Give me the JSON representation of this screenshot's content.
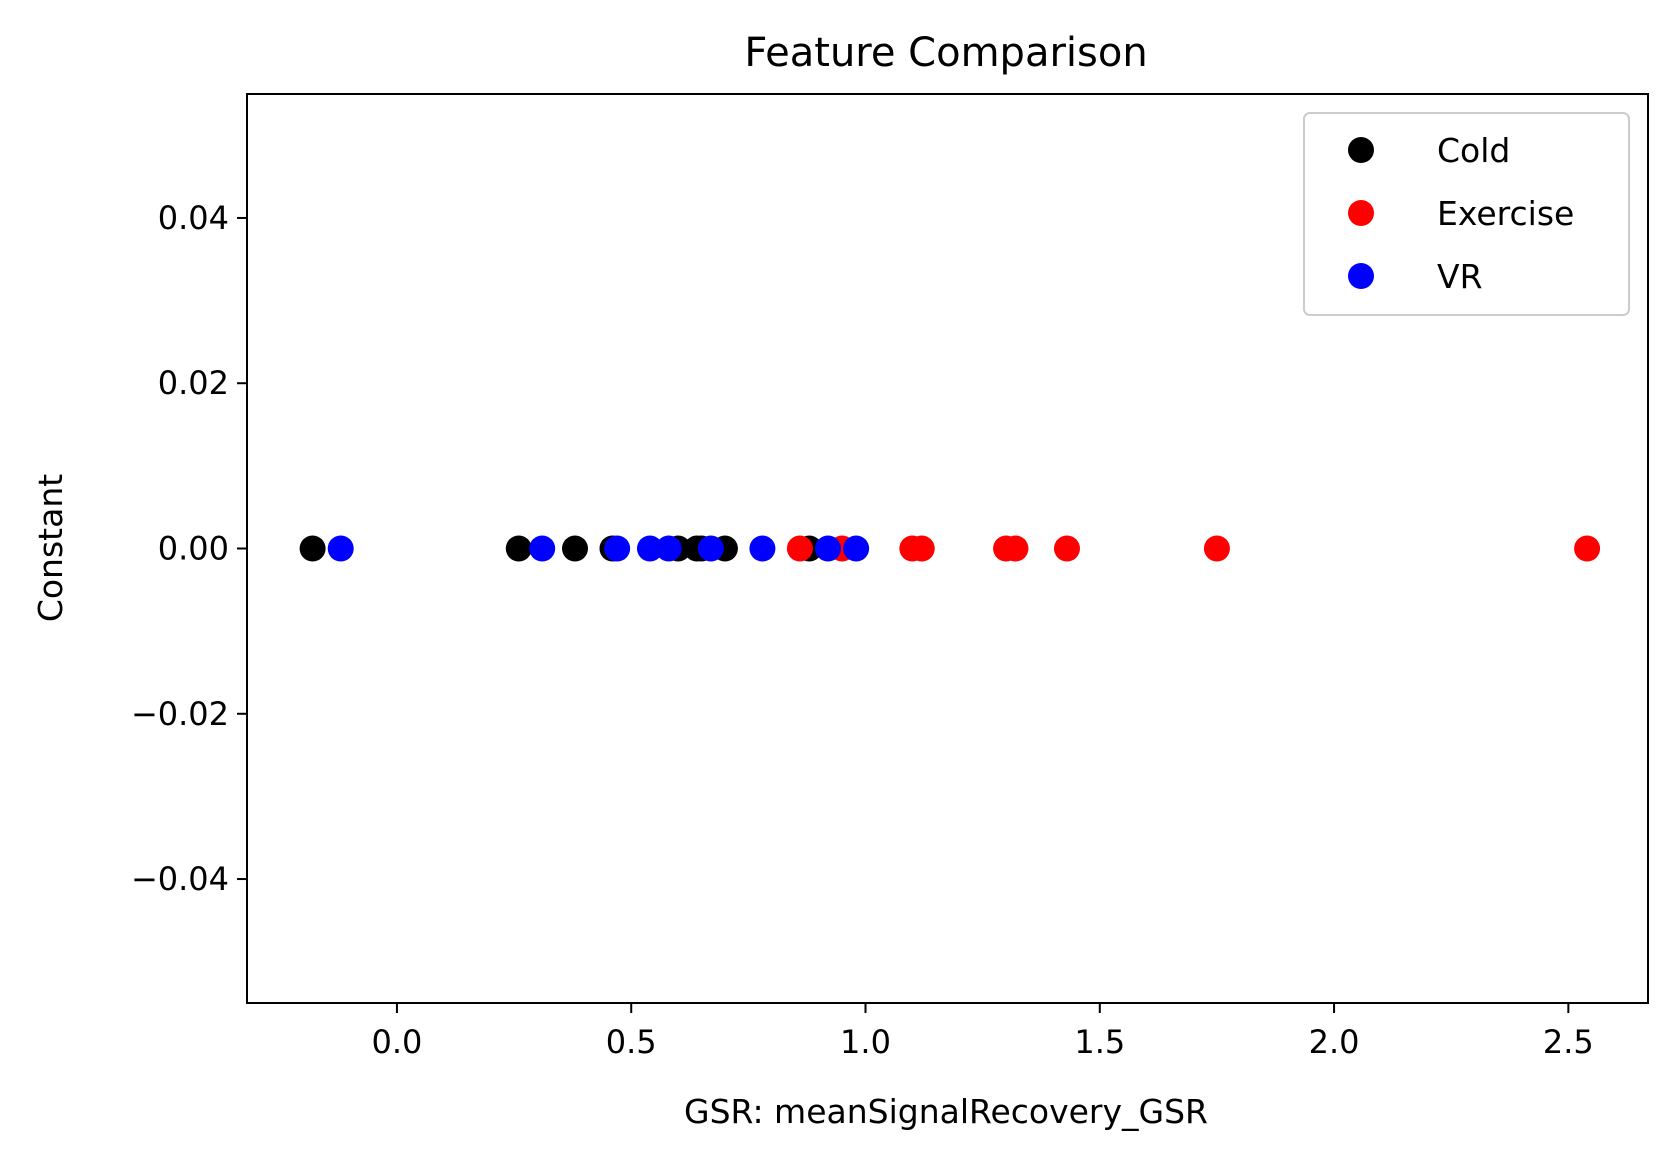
{
  "chart_data": {
    "type": "scatter",
    "title": "Feature Comparison",
    "xlabel": "GSR: meanSignalRecovery_GSR",
    "ylabel": "Constant",
    "xlim": [
      -0.32,
      2.67
    ],
    "ylim": [
      -0.055,
      0.055
    ],
    "xticks": [
      0.0,
      0.5,
      1.0,
      1.5,
      2.0,
      2.5
    ],
    "xtick_labels": [
      "0.0",
      "0.5",
      "1.0",
      "1.5",
      "2.0",
      "2.5"
    ],
    "yticks": [
      0.04,
      0.02,
      0.0,
      -0.02,
      -0.04
    ],
    "ytick_labels": [
      "0.04",
      "0.02",
      "0.00",
      "−0.02",
      "−0.04"
    ],
    "grid": false,
    "legend_position": "top-right",
    "series": [
      {
        "name": "Cold",
        "color": "#000000",
        "x": [
          -0.18,
          0.26,
          0.38,
          0.46,
          0.6,
          0.64,
          0.65,
          0.7,
          0.88
        ],
        "y": [
          0,
          0,
          0,
          0,
          0,
          0,
          0,
          0,
          0
        ]
      },
      {
        "name": "Exercise",
        "color": "#ff0000",
        "x": [
          0.86,
          0.95,
          1.1,
          1.12,
          1.3,
          1.32,
          1.43,
          1.75,
          2.54
        ],
        "y": [
          0,
          0,
          0,
          0,
          0,
          0,
          0,
          0,
          0
        ]
      },
      {
        "name": "VR",
        "color": "#0000ff",
        "x": [
          -0.12,
          0.31,
          0.47,
          0.54,
          0.58,
          0.67,
          0.78,
          0.92,
          0.98
        ],
        "y": [
          0,
          0,
          0,
          0,
          0,
          0,
          0,
          0,
          0
        ]
      }
    ]
  }
}
